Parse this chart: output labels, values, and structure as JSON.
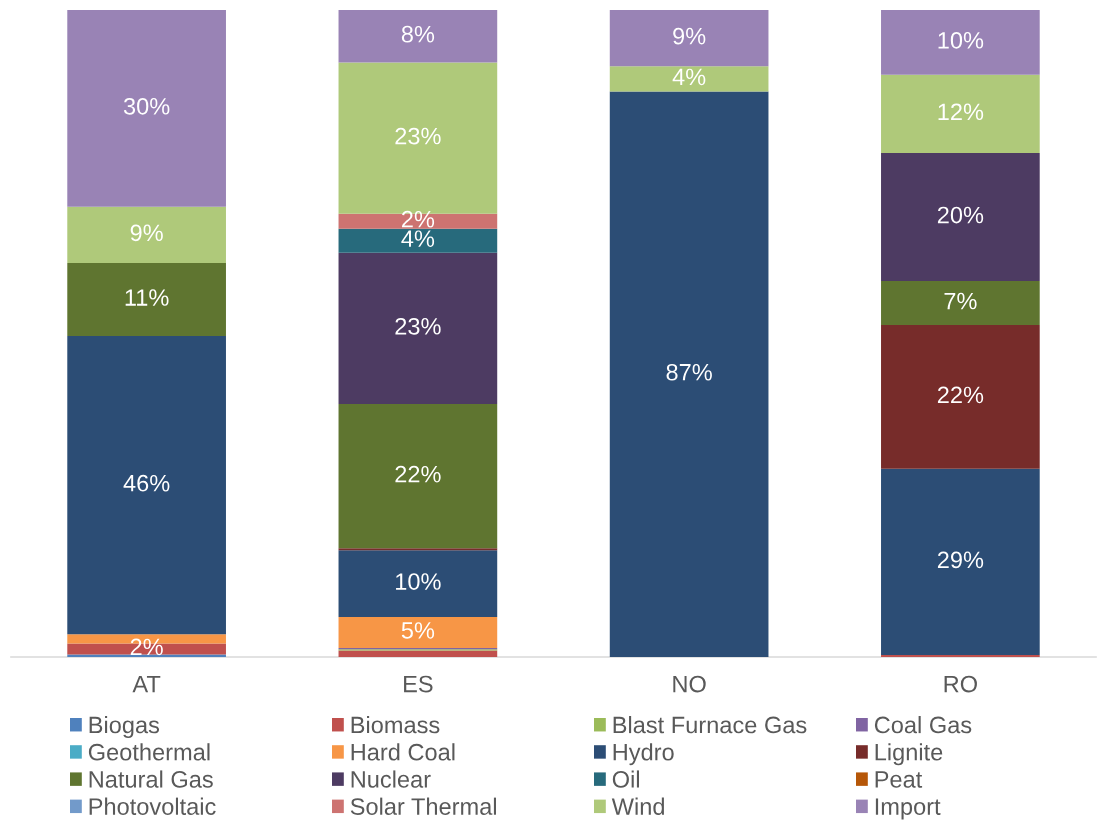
{
  "chart_data": {
    "type": "bar",
    "stacked": true,
    "categories": [
      "AT",
      "ES",
      "NO",
      "RO"
    ],
    "ylim": [
      0,
      100
    ],
    "tick_labels": "x",
    "legend": "bottom",
    "series": [
      {
        "name": "Biogas",
        "color": "#4f81bd",
        "values": [
          0.4,
          null,
          null,
          null
        ]
      },
      {
        "name": "Biomass",
        "color": "#c0504d",
        "values": [
          1.7,
          1.0,
          null,
          0.3
        ],
        "value_labels": [
          "2%",
          null,
          null,
          null
        ]
      },
      {
        "name": "Blast Furnace Gas",
        "color": "#9bbb59",
        "values": [
          null,
          0.2,
          null,
          null
        ]
      },
      {
        "name": "Coal Gas",
        "color": "#8064a2",
        "values": [
          null,
          0.2,
          null,
          null
        ]
      },
      {
        "name": "Geothermal",
        "color": "#4bacc6",
        "values": [
          null,
          null,
          null,
          null
        ]
      },
      {
        "name": "Hard Coal",
        "color": "#f79646",
        "values": [
          1.4,
          4.8,
          null,
          null
        ],
        "value_labels": [
          null,
          "5%",
          null,
          null
        ]
      },
      {
        "name": "Hydro",
        "color": "#2c4d75",
        "values": [
          46.1,
          10.3,
          87.4,
          28.8
        ],
        "value_labels": [
          "46%",
          "10%",
          "87%",
          "29%"
        ]
      },
      {
        "name": "Lignite",
        "color": "#772c2a",
        "values": [
          null,
          0.3,
          null,
          22.2
        ],
        "value_labels": [
          null,
          null,
          null,
          "22%"
        ]
      },
      {
        "name": "Natural Gas",
        "color": "#5f7530",
        "values": [
          11.3,
          22.3,
          null,
          6.8
        ],
        "value_labels": [
          "11%",
          "22%",
          null,
          "7%"
        ]
      },
      {
        "name": "Nuclear",
        "color": "#4d3b62",
        "values": [
          null,
          23.4,
          null,
          19.8
        ],
        "value_labels": [
          null,
          "23%",
          null,
          "20%"
        ]
      },
      {
        "name": "Oil",
        "color": "#276a7c",
        "values": [
          null,
          3.7,
          null,
          null
        ],
        "value_labels": [
          null,
          "4%",
          null,
          null
        ]
      },
      {
        "name": "Peat",
        "color": "#b65708",
        "values": [
          null,
          null,
          null,
          null
        ]
      },
      {
        "name": "Photovoltaic",
        "color": "#729aca",
        "values": [
          null,
          null,
          null,
          null
        ]
      },
      {
        "name": "Solar Thermal",
        "color": "#cd7371",
        "values": [
          null,
          2.3,
          null,
          null
        ],
        "value_labels": [
          null,
          "2%",
          null,
          null
        ]
      },
      {
        "name": "Wind",
        "color": "#afc97a",
        "values": [
          8.7,
          23.4,
          3.9,
          12.1
        ],
        "value_labels": [
          "9%",
          "23%",
          "4%",
          "12%"
        ]
      },
      {
        "name": "Import",
        "color": "#9983b5",
        "values": [
          30.4,
          8.1,
          8.7,
          10.0
        ],
        "value_labels": [
          "30%",
          "8%",
          "9%",
          "10%"
        ]
      }
    ]
  }
}
